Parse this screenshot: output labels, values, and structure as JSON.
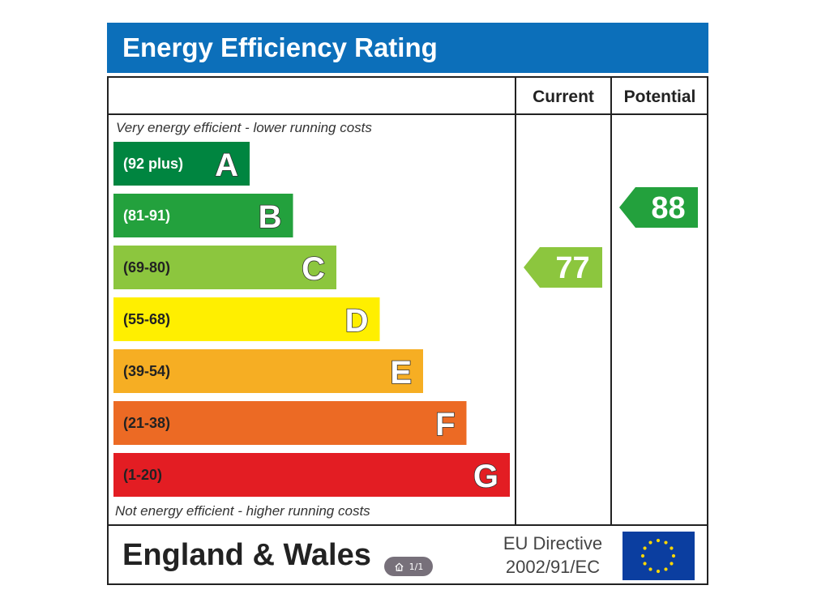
{
  "chart_data": {
    "type": "bar",
    "title": "Energy Efficiency Rating",
    "columns": [
      "Current",
      "Potential"
    ],
    "top_note": "Very energy efficient - lower running costs",
    "bottom_note": "Not energy efficient - higher running costs",
    "bands": [
      {
        "letter": "A",
        "range": "(92 plus)",
        "min": 92,
        "max": 100,
        "color": "#008540",
        "text_color": "#ffffff"
      },
      {
        "letter": "B",
        "range": "(81-91)",
        "min": 81,
        "max": 91,
        "color": "#23a13d",
        "text_color": "#ffffff"
      },
      {
        "letter": "C",
        "range": "(69-80)",
        "min": 69,
        "max": 80,
        "color": "#8cc63e",
        "text_color": "#222222"
      },
      {
        "letter": "D",
        "range": "(55-68)",
        "min": 55,
        "max": 68,
        "color": "#ffef00",
        "text_color": "#222222"
      },
      {
        "letter": "E",
        "range": "(39-54)",
        "min": 39,
        "max": 54,
        "color": "#f6ae23",
        "text_color": "#222222"
      },
      {
        "letter": "F",
        "range": "(21-38)",
        "min": 21,
        "max": 38,
        "color": "#ec6a24",
        "text_color": "#222222"
      },
      {
        "letter": "G",
        "range": "(1-20)",
        "min": 1,
        "max": 20,
        "color": "#e31d23",
        "text_color": "#222222"
      }
    ],
    "current": {
      "value": 77,
      "band": "C"
    },
    "potential": {
      "value": 88,
      "band": "B"
    },
    "region": "England & Wales",
    "directive": [
      "EU Directive",
      "2002/91/EC"
    ]
  },
  "header_color": "#0c6fba",
  "eu_flag_color": "#0b3ea0",
  "eu_star_color": "#ffd700",
  "overlay": {
    "icon": "home-icon",
    "page_label": "1/1"
  }
}
